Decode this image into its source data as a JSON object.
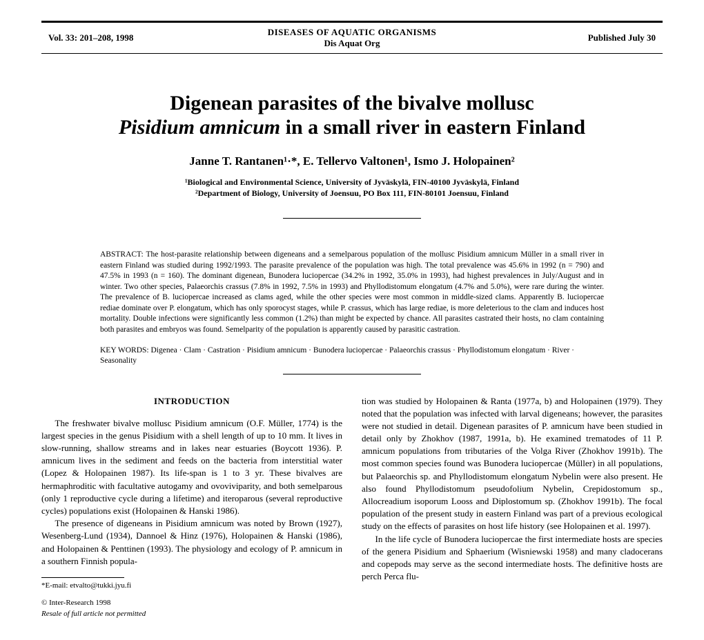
{
  "header": {
    "left": "Vol. 33: 201–208, 1998",
    "center_top": "DISEASES OF AQUATIC ORGANISMS",
    "center_sub": "Dis Aquat Org",
    "right": "Published July 30"
  },
  "title": {
    "line1": "Digenean parasites of the bivalve mollusc",
    "line2_italic": "Pisidium amnicum",
    "line2_rest": " in a small river in eastern Finland"
  },
  "authors": "Janne T. Rantanen¹·*, E. Tellervo Valtonen¹, Ismo J. Holopainen²",
  "affiliations": {
    "a1": "¹Biological and Environmental Science, University of Jyväskylä, FIN-40100 Jyväskylä, Finland",
    "a2": "²Department of Biology, University of Joensuu, PO Box 111, FIN-80101 Joensuu, Finland"
  },
  "abstract": "ABSTRACT: The host-parasite relationship between digeneans and a semelparous population of the mollusc Pisidium amnicum Müller in a small river in eastern Finland was studied during 1992/1993. The parasite prevalence of the population was high. The total prevalence was 45.6% in 1992 (n = 790) and 47.5% in 1993 (n = 160). The dominant digenean, Bunodera luciopercae (34.2% in 1992, 35.0% in 1993), had highest prevalences in July/August and in winter. Two other species, Palaeorchis crassus (7.8% in 1992, 7.5% in 1993) and Phyllodistomum elongatum (4.7% and 5.0%), were rare during the winter. The prevalence of B. luciopercae increased as clams aged, while the other species were most common in middle-sized clams. Apparently B. luciopercae rediae dominate over P. elongatum, which has only sporocyst stages, while P. crassus, which has large rediae, is more deleterious to the clam and induces host mortality. Double infections were significantly less common (1.2%) than might be expected by chance. All parasites castrated their hosts, no clam containing both parasites and embryos was found. Semelparity of the population is apparently caused by parasitic castration.",
  "keywords": "KEY WORDS: Digenea · Clam · Castration · Pisidium amnicum · Bunodera luciopercae · Palaeorchis crassus · Phyllodistomum elongatum · River · Seasonality",
  "intro_heading": "INTRODUCTION",
  "col_left": {
    "p1": "The freshwater bivalve mollusc Pisidium amnicum (O.F. Müller, 1774) is the largest species in the genus Pisidium with a shell length of up to 10 mm. It lives in slow-running, shallow streams and in lakes near estuaries (Boycott 1936). P. amnicum lives in the sediment and feeds on the bacteria from interstitial water (Lopez & Holopainen 1987). Its life-span is 1 to 3 yr. These bivalves are hermaphroditic with facultative autogamy and ovoviviparity, and both semelparous (only 1 reproductive cycle during a lifetime) and iteroparous (several reproductive cycles) populations exist (Holopainen & Hanski 1986).",
    "p2": "The presence of digeneans in Pisidium amnicum was noted by Brown (1927), Wesenberg-Lund (1934), Dannoel & Hinz (1976), Holopainen & Hanski (1986), and Holopainen & Penttinen (1993). The physiology and ecology of P. amnicum in a southern Finnish popula-"
  },
  "col_right": {
    "p1": "tion was studied by Holopainen & Ranta (1977a, b) and Holopainen (1979). They noted that the population was infected with larval digeneans; however, the parasites were not studied in detail. Digenean parasites of P. amnicum have been studied in detail only by Zhokhov (1987, 1991a, b). He examined trematodes of 11 P. amnicum populations from tributaries of the Volga River (Zhokhov 1991b). The most common species found was Bunodera luciopercae (Müller) in all populations, but Palaeorchis sp. and Phyllodistomum elongatum Nybelin were also present. He also found Phyllodistomum pseudofolium Nybelin, Crepidostomum sp., Allocreadium isoporum Looss and Diplostomum sp. (Zhokhov 1991b). The focal population of the present study in eastern Finland was part of a previous ecological study on the effects of parasites on host life history (see Holopainen et al. 1997).",
    "p2": "In the life cycle of Bunodera luciopercae the first intermediate hosts are species of the genera Pisidium and Sphaerium (Wisniewski 1958) and many cladocerans and copepods may serve as the second intermediate hosts. The definitive hosts are perch Perca flu-"
  },
  "footnote": "*E-mail: etvalto@tukki.jyu.fi",
  "copyright": {
    "line1": "© Inter-Research 1998",
    "line2": "Resale of full article not permitted"
  }
}
